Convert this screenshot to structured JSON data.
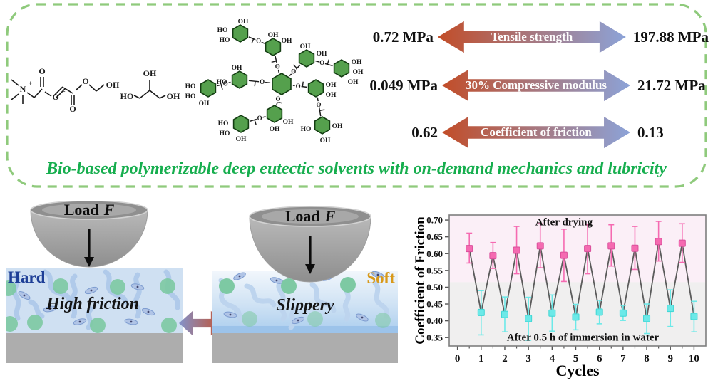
{
  "banner": {
    "headline": "Bio-based polymerizable deep eutectic solvents with on-demand mechanics and lubricity",
    "arrows": [
      {
        "label": "Tensile strength",
        "left_value": "0.72 MPa",
        "right_value": "197.88 MPa"
      },
      {
        "label": "30% Compressive modulus",
        "left_value": "0.049 MPa",
        "right_value": "21.72 MPa"
      },
      {
        "label": "Coefficient of friction",
        "left_value": "0.62",
        "right_value": "0.13"
      }
    ]
  },
  "glyphs": {
    "oh": "OH",
    "ho": "HO",
    "o": "O",
    "n": "N",
    "plus": "+",
    "minus": "−"
  },
  "panels": [
    {
      "load_label": "Load",
      "load_symbol": "F",
      "material_label": "Hard",
      "caption": "High friction"
    },
    {
      "load_label": "Load",
      "load_symbol": "F",
      "material_label": "Soft",
      "caption": "Slippery"
    }
  ],
  "colors": {
    "border_green": "#8fca7c",
    "headline_green": "#16ae4e",
    "arrow_left": "#c24d28",
    "arrow_right": "#8ca3d8",
    "exchange_left": "#8292cb",
    "exchange_right": "#c8502a",
    "hard_blue": "#1e3f97",
    "soft_gold": "#d8991a",
    "pink_series": "#f56ab1",
    "cyan_series": "#6ce9e8",
    "hexagon_green": "#55a04d"
  },
  "chart_data": {
    "type": "line",
    "xlabel": "Cycles",
    "ylabel": "Coefficient of Friction",
    "xlim": [
      -0.35,
      10.5
    ],
    "ylim": [
      0.325,
      0.715
    ],
    "xticks": [
      0,
      1,
      2,
      3,
      4,
      5,
      6,
      7,
      8,
      9,
      10
    ],
    "yticks": [
      0.35,
      0.4,
      0.45,
      0.5,
      0.55,
      0.6,
      0.65,
      0.7
    ],
    "grid": false,
    "zones": [
      {
        "from": 0.515,
        "to": 0.715,
        "color": "#fbeff7"
      },
      {
        "from": 0.325,
        "to": 0.515,
        "color": "#f0efef"
      }
    ],
    "line_color": "#5b5b5b",
    "series": [
      {
        "name": "After drying",
        "color": "#f56ab1",
        "edge": "#d94f9b",
        "x": [
          0.5,
          1.5,
          2.5,
          3.5,
          4.5,
          5.5,
          6.5,
          7.5,
          8.5,
          9.5
        ],
        "y": [
          0.615,
          0.594,
          0.61,
          0.623,
          0.595,
          0.615,
          0.623,
          0.616,
          0.636,
          0.631
        ],
        "err_up": [
          0.046,
          0.039,
          0.071,
          0.066,
          0.078,
          0.071,
          0.063,
          0.065,
          0.06,
          0.058
        ],
        "err_down": [
          0.043,
          0.038,
          0.07,
          0.065,
          0.078,
          0.075,
          0.06,
          0.063,
          0.058,
          0.057
        ]
      },
      {
        "name": "After 0.5 h of immersion in water",
        "color": "#6ce9e8",
        "edge": "#3fd6d4",
        "x": [
          1,
          2,
          3,
          4,
          5,
          6,
          7,
          8,
          9,
          10
        ],
        "y": [
          0.425,
          0.419,
          0.407,
          0.423,
          0.411,
          0.426,
          0.423,
          0.407,
          0.437,
          0.413
        ],
        "err_up": [
          0.065,
          0.052,
          0.063,
          0.054,
          0.038,
          0.035,
          0.023,
          0.043,
          0.055,
          0.045
        ],
        "err_down": [
          0.067,
          0.052,
          0.065,
          0.054,
          0.038,
          0.035,
          0.022,
          0.045,
          0.054,
          0.046
        ]
      }
    ],
    "annotations": [
      {
        "text": "After drying",
        "x": 4.5,
        "y": 0.695
      },
      {
        "text": "After 0.5 h of immersion in water",
        "x": 5.3,
        "y": 0.352
      }
    ]
  }
}
